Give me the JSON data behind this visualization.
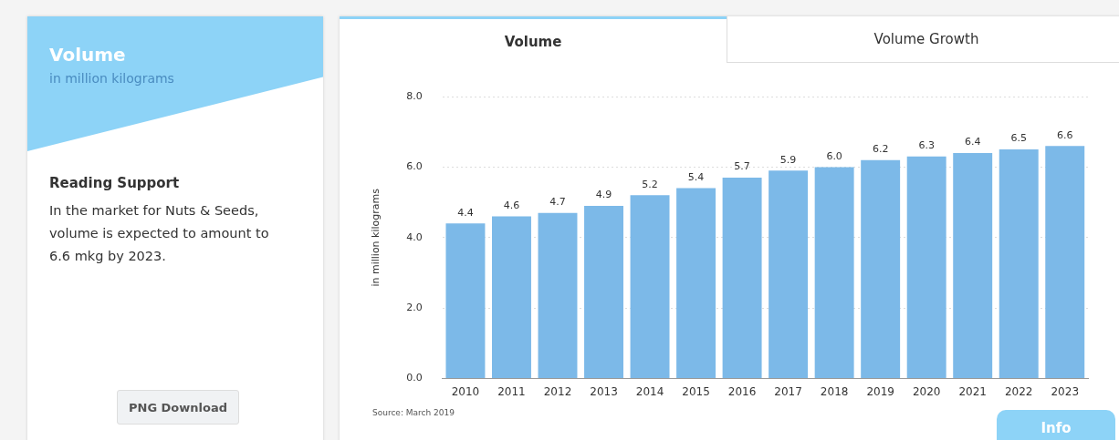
{
  "chart_data": {
    "type": "bar",
    "title": "Volume",
    "subtitle": "in million kilograms",
    "ylabel": "in million kilograms",
    "categories": [
      "2010",
      "2011",
      "2012",
      "2013",
      "2014",
      "2015",
      "2016",
      "2017",
      "2018",
      "2019",
      "2020",
      "2021",
      "2022",
      "2023"
    ],
    "values": [
      4.4,
      4.6,
      4.7,
      4.9,
      5.2,
      5.4,
      5.7,
      5.9,
      6.0,
      6.2,
      6.3,
      6.4,
      6.5,
      6.6
    ],
    "color": "#7cb9e8",
    "ylim": [
      0,
      8
    ],
    "yticks": [
      {
        "value": 0,
        "label": "0.0"
      },
      {
        "value": 2,
        "label": "2.0"
      },
      {
        "value": 4,
        "label": "4.0"
      },
      {
        "value": 6,
        "label": "6.0"
      },
      {
        "value": 8,
        "label": "8.0"
      }
    ],
    "grid": "y",
    "value_labels": [
      "4.4",
      "4.6",
      "4.7",
      "4.9",
      "5.2",
      "5.4",
      "5.7",
      "5.9",
      "6.0",
      "6.2",
      "6.3",
      "6.4",
      "6.5",
      "6.6"
    ],
    "annotations": [
      "Reading Support",
      "In the market for Nuts & Seeds, volume is expected to amount to 6.6 mkg by 2023.",
      "PNG Download",
      "Volume",
      "Volume Growth",
      "Info",
      "Source: March 2019"
    ]
  }
}
